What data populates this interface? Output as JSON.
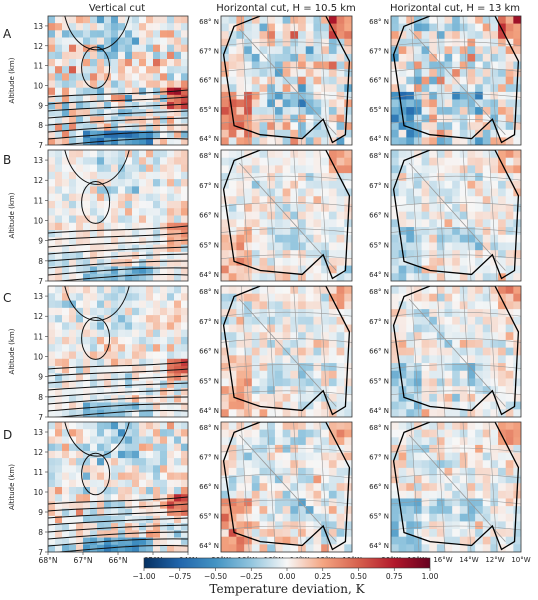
{
  "column_titles": [
    "Vertical cut",
    "Horizontal cut, H = 10.5 km",
    "Horizontal cut, H = 13 km"
  ],
  "row_labels": [
    "A",
    "B",
    "C",
    "D"
  ],
  "vertical_cut": {
    "ylabel": "Altitude (km)",
    "yticks": [
      "7",
      "8",
      "9",
      "10",
      "11",
      "12",
      "13"
    ],
    "xticks": [
      "68°N",
      "67°N",
      "66°N",
      "65°N",
      "64°N"
    ]
  },
  "horizontal_cut": {
    "lat_ticks": [
      "68° N",
      "67° N",
      "66° N",
      "65° N",
      "64° N"
    ],
    "lon_ticks": [
      "20°W",
      "18°W",
      "16°W",
      "14°W",
      "12°W",
      "10°W"
    ]
  },
  "colorbar": {
    "ticks": [
      "−1.00",
      "−0.75",
      "−0.50",
      "−0.25",
      "0.00",
      "0.25",
      "0.50",
      "0.75",
      "1.00"
    ],
    "label": "Temperature deviation, K"
  },
  "chart_data": {
    "type": "heatmap",
    "value_range": [
      -1.0,
      1.0
    ],
    "colormap": "RdBu_r",
    "vertical_cut_axis": {
      "x_range": [
        "68°N",
        "64°N"
      ],
      "y_range_km": [
        7,
        13.8
      ]
    },
    "horizontal_cut_axis": {
      "lat_range": [
        "63.7°N",
        "68.1°N"
      ],
      "lon_range": [
        "20°W",
        "10°W"
      ]
    },
    "panels": [
      {
        "row": "A",
        "column": "Vertical cut",
        "intensity": 0.85
      },
      {
        "row": "A",
        "column": "Horizontal cut, H = 10.5 km",
        "intensity": 0.8
      },
      {
        "row": "A",
        "column": "Horizontal cut, H = 13 km",
        "intensity": 0.85
      },
      {
        "row": "B",
        "column": "Vertical cut",
        "intensity": 0.45
      },
      {
        "row": "B",
        "column": "Horizontal cut, H = 10.5 km",
        "intensity": 0.4
      },
      {
        "row": "B",
        "column": "Horizontal cut, H = 13 km",
        "intensity": 0.4
      },
      {
        "row": "C",
        "column": "Vertical cut",
        "intensity": 0.5
      },
      {
        "row": "C",
        "column": "Horizontal cut, H = 10.5 km",
        "intensity": 0.45
      },
      {
        "row": "C",
        "column": "Horizontal cut, H = 13 km",
        "intensity": 0.45
      },
      {
        "row": "D",
        "column": "Vertical cut",
        "intensity": 0.6
      },
      {
        "row": "D",
        "column": "Horizontal cut, H = 10.5 km",
        "intensity": 0.55
      },
      {
        "row": "D",
        "column": "Horizontal cut, H = 13 km",
        "intensity": 0.5
      }
    ]
  }
}
